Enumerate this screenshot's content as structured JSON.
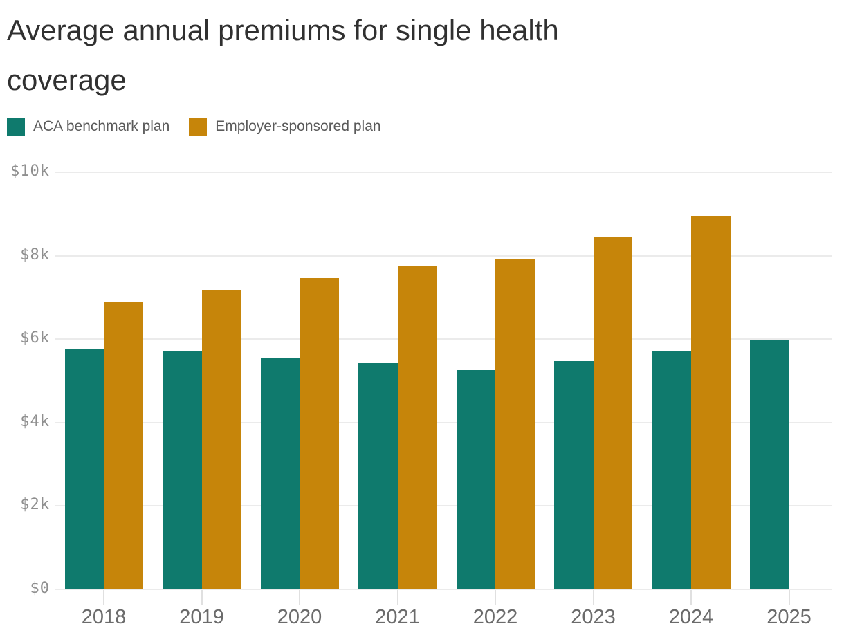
{
  "title": {
    "lines": [
      "Average annual premiums for single health",
      "coverage"
    ]
  },
  "chart_data": {
    "type": "bar",
    "title": "Average annual premiums for single health coverage",
    "categories": [
      "2018",
      "2019",
      "2020",
      "2021",
      "2022",
      "2023",
      "2024",
      "2025"
    ],
    "series": [
      {
        "name": "ACA benchmark plan",
        "color": "#0F7A6D",
        "values": [
          5772,
          5724,
          5544,
          5424,
          5256,
          5472,
          5724,
          5964
        ]
      },
      {
        "name": "Employer-sponsored plan",
        "color": "#C6850A",
        "values": [
          6896,
          7188,
          7470,
          7739,
          7911,
          8435,
          8951,
          null
        ]
      }
    ],
    "xlabel": "",
    "ylabel": "",
    "ylim": [
      0,
      10000
    ],
    "y_ticks": [
      {
        "label": "$0",
        "value": 0
      },
      {
        "label": "$2k",
        "value": 2000
      },
      {
        "label": "$4k",
        "value": 4000
      },
      {
        "label": "$6k",
        "value": 6000
      },
      {
        "label": "$8k",
        "value": 8000
      },
      {
        "label": "$10k",
        "value": 10000
      }
    ],
    "grid": "horizontal",
    "legend_position": "top-left"
  },
  "colors": {
    "title_text": "#303030",
    "legend_text": "#5a5a5a",
    "y_label": "#8f8f8f",
    "x_label": "#6b6b6b",
    "gridline": "#ebebeb",
    "axis_tick": "#e0e0e0"
  }
}
